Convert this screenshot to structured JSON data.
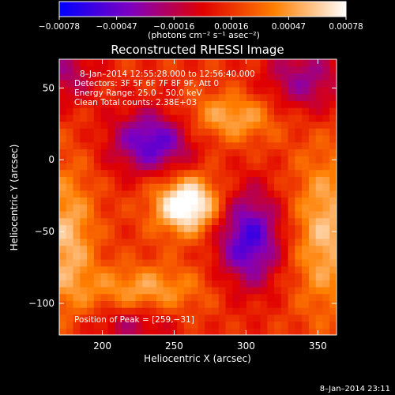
{
  "colorbar": {
    "ticks": [
      "−0.00078",
      "−0.00047",
      "−0.00016",
      "0.00016",
      "0.00047",
      "0.00078"
    ],
    "unit_label": "(photons cm⁻² s⁻¹ asec⁻²)",
    "range": [
      -0.00078,
      0.00078
    ],
    "colors": [
      "#0000ff",
      "#8000c0",
      "#e00000",
      "#ff7f00",
      "#ffffff"
    ]
  },
  "chart_data": {
    "type": "heatmap",
    "title": "Reconstructed RHESSI Image",
    "xlabel": "Heliocentric X (arcsec)",
    "ylabel": "Heliocentric Y (arcsec)",
    "xlim": [
      170,
      363
    ],
    "ylim": [
      -122,
      70
    ],
    "xticks": [
      200,
      250,
      300,
      350
    ],
    "yticks": [
      -100,
      -50,
      0,
      50
    ],
    "xtick_labels": [
      "200",
      "250",
      "300",
      "350"
    ],
    "ytick_labels": [
      "−100",
      "−50",
      "0",
      "50"
    ],
    "annotations": [
      "8–Jan–2014 12:55:28.000 to 12:56:40.000",
      "Detectors: 3F 5F 6F 7F 8F 9F, Att 0",
      "Energy Range: 25.0 – 50.0 keV",
      "Clean     Total counts: 2.38E+03"
    ],
    "peak_label": "Position of Peak = [259,−31]",
    "peak": [
      259,
      -31
    ],
    "features": [
      {
        "kind": "max",
        "x": 259,
        "y": -31,
        "amplitude": 1.0,
        "sx": 16,
        "sy": 14
      },
      {
        "kind": "min",
        "x": 235,
        "y": 13,
        "amplitude": -0.85,
        "sx": 20,
        "sy": 16
      },
      {
        "kind": "min",
        "x": 302,
        "y": -55,
        "amplitude": -0.9,
        "sx": 16,
        "sy": 24
      },
      {
        "kind": "max",
        "x": 175,
        "y": -55,
        "amplitude": 0.55,
        "sx": 14,
        "sy": 35
      },
      {
        "kind": "max",
        "x": 355,
        "y": -50,
        "amplitude": 0.55,
        "sx": 16,
        "sy": 40
      },
      {
        "kind": "max",
        "x": 290,
        "y": 30,
        "amplitude": 0.5,
        "sx": 25,
        "sy": 12
      },
      {
        "kind": "max",
        "x": 230,
        "y": -90,
        "amplitude": 0.45,
        "sx": 30,
        "sy": 12
      },
      {
        "kind": "min",
        "x": 340,
        "y": 55,
        "amplitude": -0.55,
        "sx": 20,
        "sy": 18
      },
      {
        "kind": "min",
        "x": 220,
        "y": -115,
        "amplitude": -0.4,
        "sx": 20,
        "sy": 10
      },
      {
        "kind": "min",
        "x": 175,
        "y": 60,
        "amplitude": -0.45,
        "sx": 15,
        "sy": 15
      }
    ]
  },
  "footer_date": "8–Jan–2014 23:11"
}
